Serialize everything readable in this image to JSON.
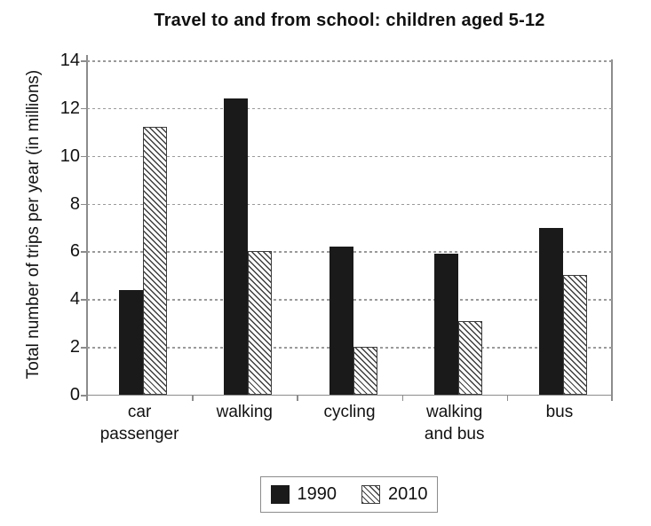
{
  "title": "Travel to and from school: children aged 5-12",
  "chart_data": {
    "type": "bar",
    "title": "Travel to and from school: children aged 5-12",
    "xlabel": "",
    "ylabel": "Total number of trips per year (in millions)",
    "ylim": [
      0,
      14
    ],
    "yticks": [
      0,
      2,
      4,
      6,
      8,
      10,
      12,
      14
    ],
    "grid": "horizontal-dashed",
    "legend_position": "bottom",
    "categories": [
      "car\npassenger",
      "walking",
      "cycling",
      "walking\nand bus",
      "bus"
    ],
    "series": [
      {
        "name": "1990",
        "style": "solid-black",
        "values": [
          4.4,
          12.4,
          6.2,
          5.9,
          7.0
        ]
      },
      {
        "name": "2010",
        "style": "diagonal-hatch",
        "values": [
          11.2,
          6.0,
          2.0,
          3.1,
          5.0
        ]
      }
    ]
  },
  "legend": {
    "items": [
      {
        "label": "1990",
        "swatch": "solid-black"
      },
      {
        "label": "2010",
        "swatch": "diagonal-hatch"
      }
    ]
  },
  "colors": {
    "bar_1990": "#1a1a1a",
    "hatch_line_2010": "#3d3d3d",
    "axis": "#8c8c8c",
    "gridline": "#9a9a9a",
    "text": "#111111",
    "background": "#ffffff"
  }
}
